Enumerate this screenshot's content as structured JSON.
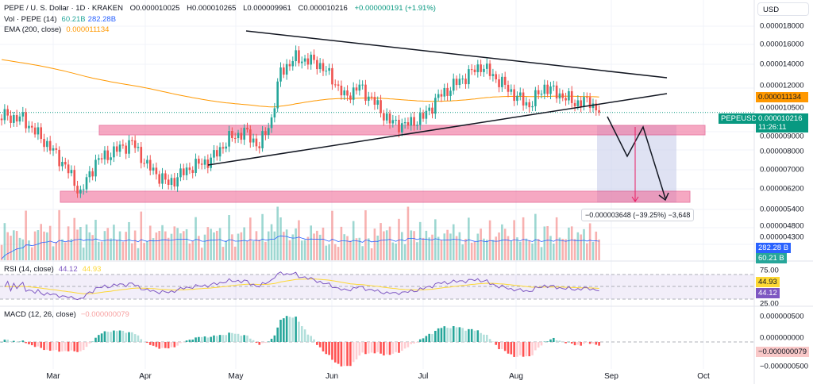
{
  "header": {
    "symbol": "PEPE / U. S. Dollar · 1D · KRAKEN",
    "open": "O0.000010025",
    "high": "H0.000010265",
    "low": "L0.000009961",
    "close": "C0.000010216",
    "change": "+0.000000191 (+1.91%)"
  },
  "volume_legend": {
    "label": "Vol · PEPE (14)",
    "value": "60.21B",
    "ma": "282.28B"
  },
  "ema_legend": {
    "label": "EMA (200, close)",
    "value": "0.000011134"
  },
  "rsi_legend": {
    "label": "RSI (14, close)",
    "value": "44.12",
    "ma": "44.93"
  },
  "macd_legend": {
    "label": "MACD (12, 26, close)",
    "value": "−0.000000079"
  },
  "currency_button": "USD",
  "symbol_tag": "PEPEUSD",
  "last_price": "0.000010216",
  "countdown": "11:26:11",
  "ema_tag": "0.000011134",
  "volume_tags": {
    "ma": "282.28 B",
    "vol": "60.21 B"
  },
  "rsi_tags": {
    "ma": "44.93",
    "rsi": "44.12"
  },
  "macd_tag": "−0.000000079",
  "measure_label": "−0.000003648 (−39.25%) −3,648",
  "colors": {
    "up": "#26a69a",
    "down": "#ef5350",
    "ema": "#ff9800",
    "rsi": "#7e57c2",
    "rsi_ma": "#fdd835",
    "zone": "#f06292",
    "projection": "#c5cae9",
    "volume_ma": "#2962ff"
  },
  "chart_data": {
    "type": "candlestick",
    "scale": "log",
    "price_ticks": [
      "0.000018000",
      "0.000016000",
      "0.000014000",
      "0.000012000",
      "0.000010500",
      "0.000009000",
      "0.000008000",
      "0.000007000",
      "0.000006200",
      "0.000005400",
      "0.000004800",
      "0.000004300"
    ],
    "rsi_ticks": [
      "75.00",
      "25.00"
    ],
    "macd_ticks": [
      "0.000000500",
      "0.000000000",
      "−0.000000500"
    ],
    "time_ticks": [
      "Mar",
      "Apr",
      "May",
      "Jun",
      "Jul",
      "Aug",
      "Sep",
      "Oct"
    ],
    "closes": [
      [
        "2024-02-13",
        1e-05
      ],
      [
        "2024-02-20",
        9.8e-06
      ],
      [
        "2024-02-28",
        8.3e-06
      ],
      [
        "2024-03-05",
        7.2e-06
      ],
      [
        "2024-03-10",
        6e-06
      ],
      [
        "2024-03-15",
        7.4e-06
      ],
      [
        "2024-03-22",
        8e-06
      ],
      [
        "2024-03-27",
        8.4e-06
      ],
      [
        "2024-04-01",
        7.2e-06
      ],
      [
        "2024-04-08",
        6.4e-06
      ],
      [
        "2024-04-15",
        7.1e-06
      ],
      [
        "2024-04-22",
        7.5e-06
      ],
      [
        "2024-04-28",
        8.6e-06
      ],
      [
        "2024-05-03",
        9e-06
      ],
      [
        "2024-05-08",
        8.2e-06
      ],
      [
        "2024-05-12",
        9.8e-06
      ],
      [
        "2024-05-15",
        1.34e-05
      ],
      [
        "2024-05-20",
        1.46e-05
      ],
      [
        "2024-05-27",
        1.42e-05
      ],
      [
        "2024-06-01",
        1.28e-05
      ],
      [
        "2024-06-05",
        1.13e-05
      ],
      [
        "2024-06-10",
        1.21e-05
      ],
      [
        "2024-06-15",
        1.09e-05
      ],
      [
        "2024-06-20",
        9.6e-06
      ],
      [
        "2024-06-25",
        9.4e-06
      ],
      [
        "2024-07-01",
        9.9e-06
      ],
      [
        "2024-07-06",
        1.13e-05
      ],
      [
        "2024-07-12",
        1.24e-05
      ],
      [
        "2024-07-20",
        1.39e-05
      ],
      [
        "2024-07-25",
        1.28e-05
      ],
      [
        "2024-08-01",
        1.13e-05
      ],
      [
        "2024-08-05",
        1.07e-05
      ],
      [
        "2024-08-10",
        1.21e-05
      ],
      [
        "2024-08-15",
        1.15e-05
      ],
      [
        "2024-08-20",
        1.09e-05
      ],
      [
        "2024-08-25",
        1.1e-05
      ],
      [
        "2024-08-28",
        1.0216e-05
      ]
    ],
    "ema_200_last": 1.1134e-05,
    "support_zones": [
      [
        8.9e-06,
        9.4e-06
      ],
      [
        5.6e-06,
        6e-06
      ]
    ],
    "projected_drop": {
      "value": -3.648e-06,
      "percent": -39.25
    }
  }
}
